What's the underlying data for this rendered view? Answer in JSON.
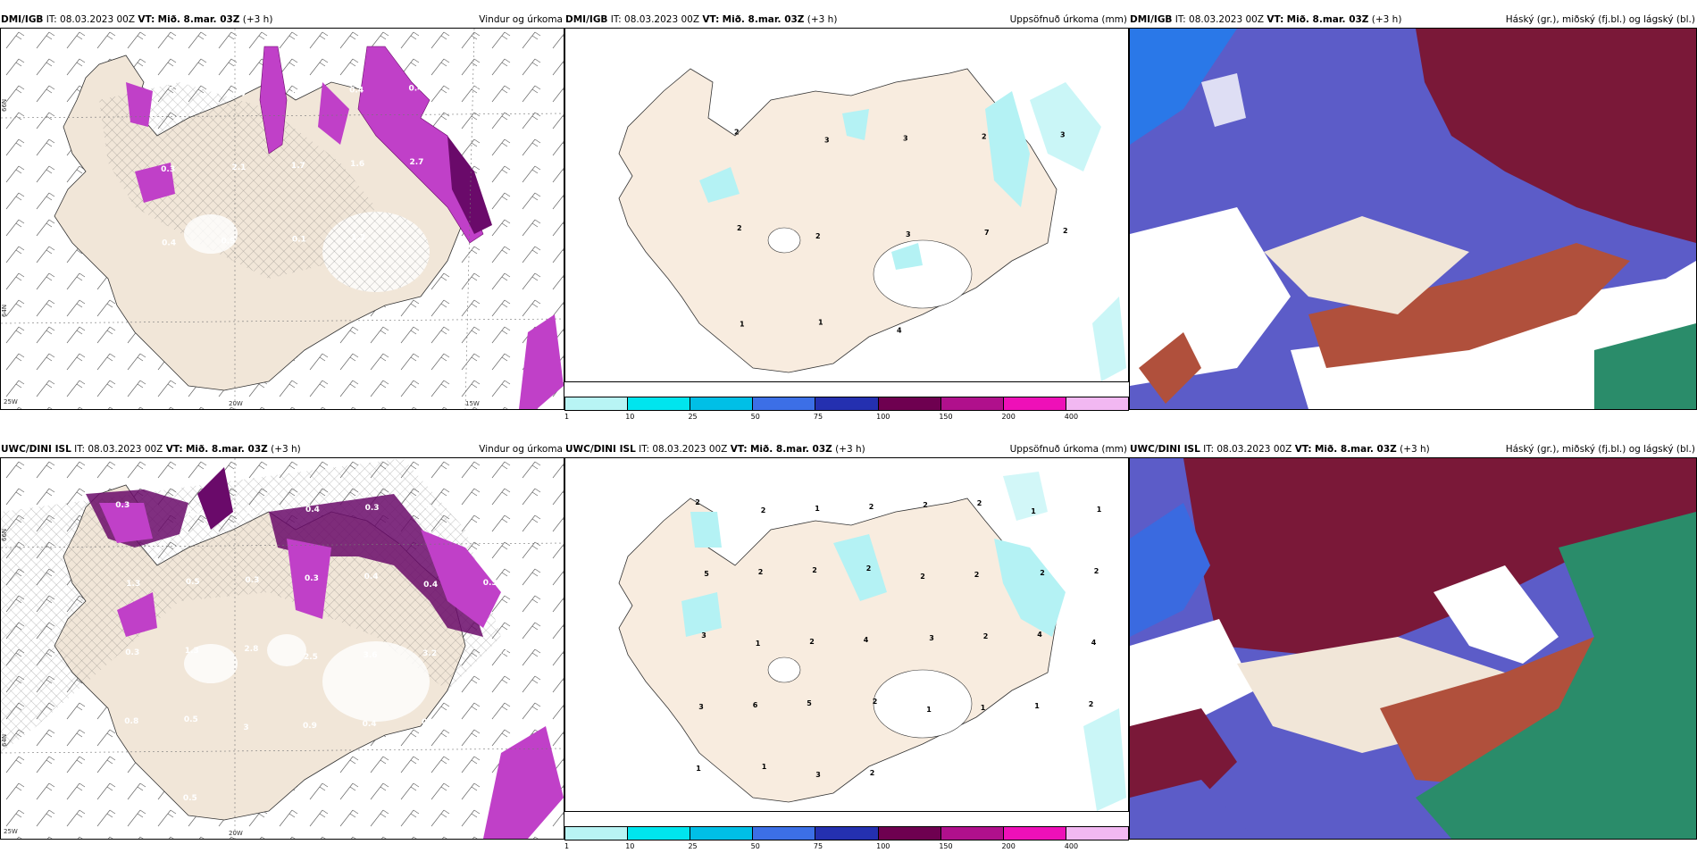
{
  "panels": [
    {
      "source": "DMI/IGB",
      "it": "IT: 08.03.2023 00Z",
      "vt_label": "VT:",
      "vt": "Mið. 8.mar. 03Z",
      "lead": "(+3 h)",
      "right": "Vindur og úrkoma"
    },
    {
      "source": "DMI/IGB",
      "it": "IT: 08.03.2023 00Z",
      "vt_label": "VT:",
      "vt": "Mið. 8.mar. 03Z",
      "lead": "(+3 h)",
      "right": "Uppsöfnuð úrkoma (mm)"
    },
    {
      "source": "DMI/IGB",
      "it": "IT: 08.03.2023 00Z",
      "vt_label": "VT:",
      "vt": "Mið. 8.mar. 03Z",
      "lead": "(+3 h)",
      "right": "Háský (gr.), miðský (fj.bl.) og lágský (bl.)"
    },
    {
      "source": "UWC/DINI ISL",
      "it": "IT: 08.03.2023 00Z",
      "vt_label": "VT:",
      "vt": "Mið. 8.mar. 03Z",
      "lead": "(+3 h)",
      "right": "Vindur og úrkoma"
    },
    {
      "source": "UWC/DINI ISL",
      "it": "IT: 08.03.2023 00Z",
      "vt_label": "VT:",
      "vt": "Mið. 8.mar. 03Z",
      "lead": "(+3 h)",
      "right": "Uppsöfnuð úrkoma (mm)"
    },
    {
      "source": "UWC/DINI ISL",
      "it": "IT: 08.03.2023 00Z",
      "vt_label": "VT:",
      "vt": "Mið. 8.mar. 03Z",
      "lead": "(+3 h)",
      "right": "Háský (gr.), miðský (fj.bl.) og lágský (bl.)"
    }
  ],
  "grid_labels": {
    "lat66": "66N",
    "lat64": "64N",
    "lon25": "25W",
    "lon20": "20W",
    "lon15": "15W"
  },
  "colorbar": {
    "ticks": [
      "1",
      "10",
      "25",
      "50",
      "75",
      "100",
      "150",
      "200",
      "400"
    ],
    "colors": [
      "#b8f4f4",
      "#00e5ee",
      "#00bfe6",
      "#3c6fe6",
      "#2430b0",
      "#6e0050",
      "#b0108c",
      "#ee10b8",
      "#f2b8f2"
    ]
  },
  "top_wind_labels": [
    "0.3",
    "1.4",
    "1.2",
    "0.4",
    "0.4",
    "0.4",
    "0.3",
    "2.1",
    "1.7",
    "1.6",
    "2.7",
    "0.1",
    "0.4",
    "0.9",
    "0.1",
    "1.2"
  ],
  "top_precip_labels": [
    "2",
    "3",
    "3",
    "2",
    "3",
    "2",
    "2",
    "3",
    "7",
    "2",
    "1",
    "1",
    "4"
  ],
  "bottom_wind_labels": [
    "0.3",
    "0.2",
    "0.3",
    "0.4",
    "0.3",
    "0.4",
    "0.2",
    "1.3",
    "0.5",
    "0.3",
    "0.3",
    "0.4",
    "0.4",
    "0.3",
    "0.3",
    "1.3",
    "2.8",
    "2.5",
    "3.6",
    "3.2",
    "2.2",
    "0.8",
    "0.5",
    "3",
    "0.9",
    "0.4",
    "0.2",
    "1.7",
    "1.3",
    "0.5"
  ],
  "bottom_precip_labels": [
    "2",
    "2",
    "1",
    "2",
    "2",
    "2",
    "1",
    "1",
    "5",
    "2",
    "2",
    "2",
    "2",
    "2",
    "2",
    "2",
    "3",
    "1",
    "2",
    "4",
    "3",
    "2",
    "4",
    "4",
    "3",
    "6",
    "5",
    "2",
    "1",
    "1",
    "1",
    "2",
    "1",
    "1",
    "3",
    "2"
  ],
  "colors": {
    "land": "#f1e6d8",
    "wind_precip": "#c040c8",
    "wind_precip_dark": "#6a0a6a",
    "precip": "#b4f2f4",
    "cloud_high": "#7a1838",
    "cloud_mid": "#6060cc",
    "cloud_low": "#2a8c6a"
  }
}
